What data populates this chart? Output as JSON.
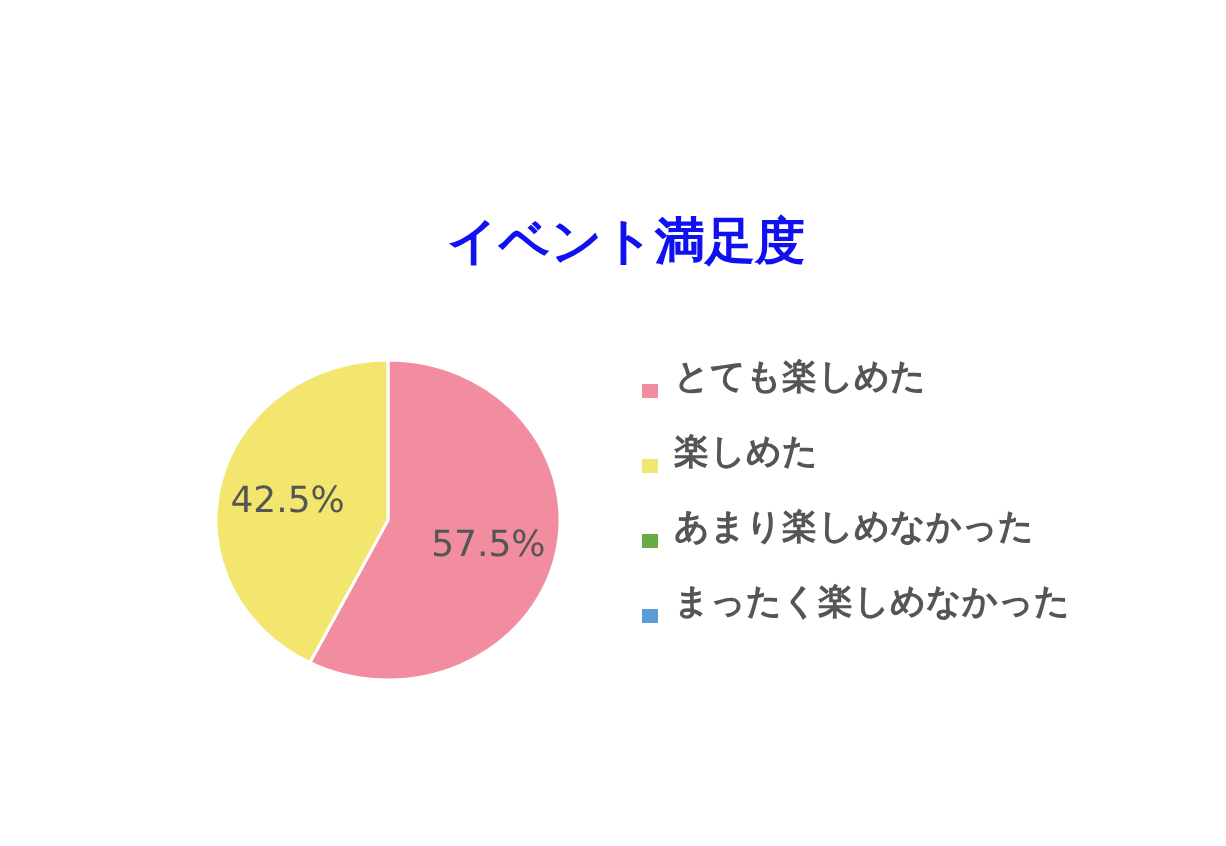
{
  "chart_data": {
    "type": "pie",
    "title": "イベント満足度",
    "categories": [
      "とても楽しめた",
      "楽しめた",
      "あまり楽しめなかった",
      "まったく楽しめなかった"
    ],
    "values": [
      57.5,
      42.5,
      0,
      0
    ],
    "colors": [
      "#f28c9f",
      "#f2e66e",
      "#6aab46",
      "#5b9bd5"
    ],
    "value_labels": [
      "57.5%",
      "42.5%",
      null,
      null
    ],
    "legend": "right"
  }
}
